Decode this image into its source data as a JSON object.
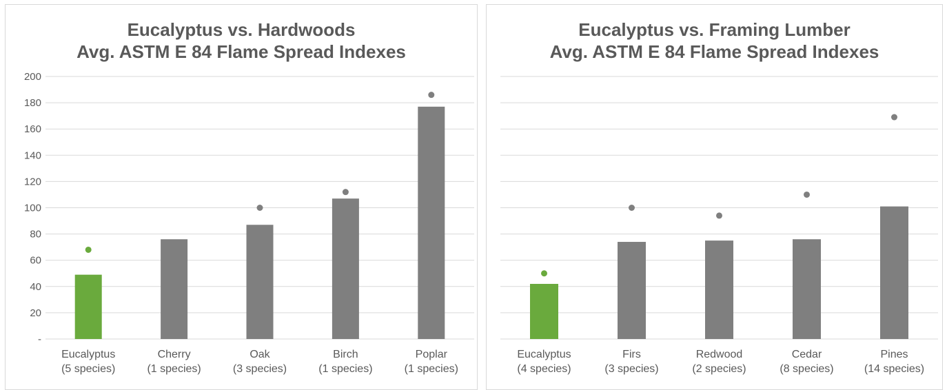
{
  "chart_data": [
    {
      "type": "bar",
      "title_lines": [
        "Eucalyptus vs. Hardwoods",
        "Avg. ASTM E 84 Flame Spread Indexes"
      ],
      "categories": [
        [
          "Eucalyptus",
          "(5 species)"
        ],
        [
          "Cherry",
          "(1 species)"
        ],
        [
          "Oak",
          "(3 species)"
        ],
        [
          "Birch",
          "(1 species)"
        ],
        [
          "Poplar",
          "(1 species)"
        ]
      ],
      "values": [
        49,
        76,
        87,
        107,
        177
      ],
      "markers": [
        68,
        null,
        100,
        112,
        186
      ],
      "colors": [
        "#6aaa3d",
        "#7f7f7f",
        "#7f7f7f",
        "#7f7f7f",
        "#7f7f7f"
      ],
      "ylim": [
        0,
        200
      ],
      "yticks": [
        0,
        20,
        40,
        60,
        80,
        100,
        120,
        140,
        160,
        180,
        200
      ],
      "ytick_labels": [
        "-",
        "20",
        "40",
        "60",
        "80",
        "100",
        "120",
        "140",
        "160",
        "180",
        "200"
      ],
      "grid": true
    },
    {
      "type": "bar",
      "title_lines": [
        "Eucalyptus vs. Framing Lumber",
        "Avg. ASTM E 84 Flame Spread Indexes"
      ],
      "categories": [
        [
          "Eucalyptus",
          "(4 species)"
        ],
        [
          "Firs",
          "(3 species)"
        ],
        [
          "Redwood",
          "(2 species)"
        ],
        [
          "Cedar",
          "(8 species)"
        ],
        [
          "Pines",
          "(14 species)"
        ]
      ],
      "values": [
        42,
        74,
        75,
        76,
        101
      ],
      "markers": [
        50,
        100,
        94,
        110,
        169
      ],
      "colors": [
        "#6aaa3d",
        "#7f7f7f",
        "#7f7f7f",
        "#7f7f7f",
        "#7f7f7f"
      ],
      "ylim": [
        0,
        200
      ],
      "yticks": [
        0,
        20,
        40,
        60,
        80,
        100,
        120,
        140,
        160,
        180,
        200
      ],
      "ytick_labels": [],
      "grid": true
    }
  ]
}
